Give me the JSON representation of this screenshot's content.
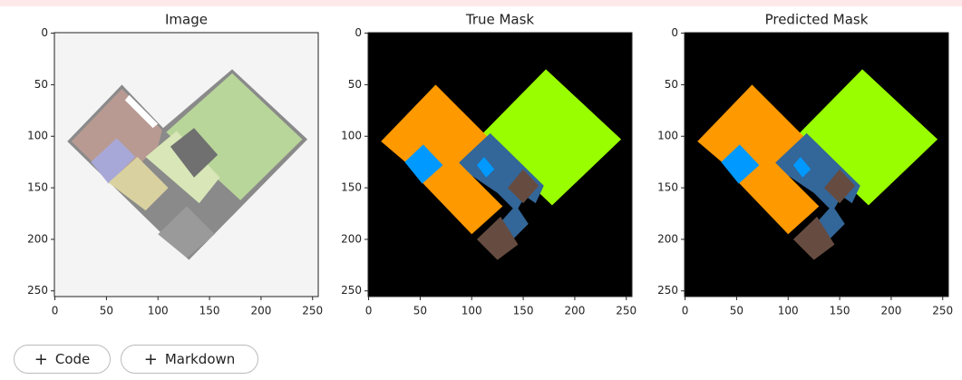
{
  "panels": [
    {
      "title": "Image",
      "kind": "image",
      "xlim": [
        -0.5,
        255.5
      ],
      "ylim": [
        255.5,
        -0.5
      ],
      "xticks": [
        0,
        50,
        100,
        150,
        200,
        250
      ],
      "yticks": [
        0,
        50,
        100,
        150,
        200,
        250
      ]
    },
    {
      "title": "True Mask",
      "kind": "mask",
      "xlim": [
        -0.5,
        255.5
      ],
      "ylim": [
        255.5,
        -0.5
      ],
      "xticks": [
        0,
        50,
        100,
        150,
        200,
        250
      ],
      "yticks": [
        0,
        50,
        100,
        150,
        200,
        250
      ]
    },
    {
      "title": "Predicted Mask",
      "kind": "mask",
      "xlim": [
        -0.5,
        255.5
      ],
      "ylim": [
        255.5,
        -0.5
      ],
      "xticks": [
        0,
        50,
        100,
        150,
        200,
        250
      ],
      "yticks": [
        0,
        50,
        100,
        150,
        200,
        250
      ]
    }
  ],
  "buttons": [
    "Code",
    "Markdown"
  ]
}
